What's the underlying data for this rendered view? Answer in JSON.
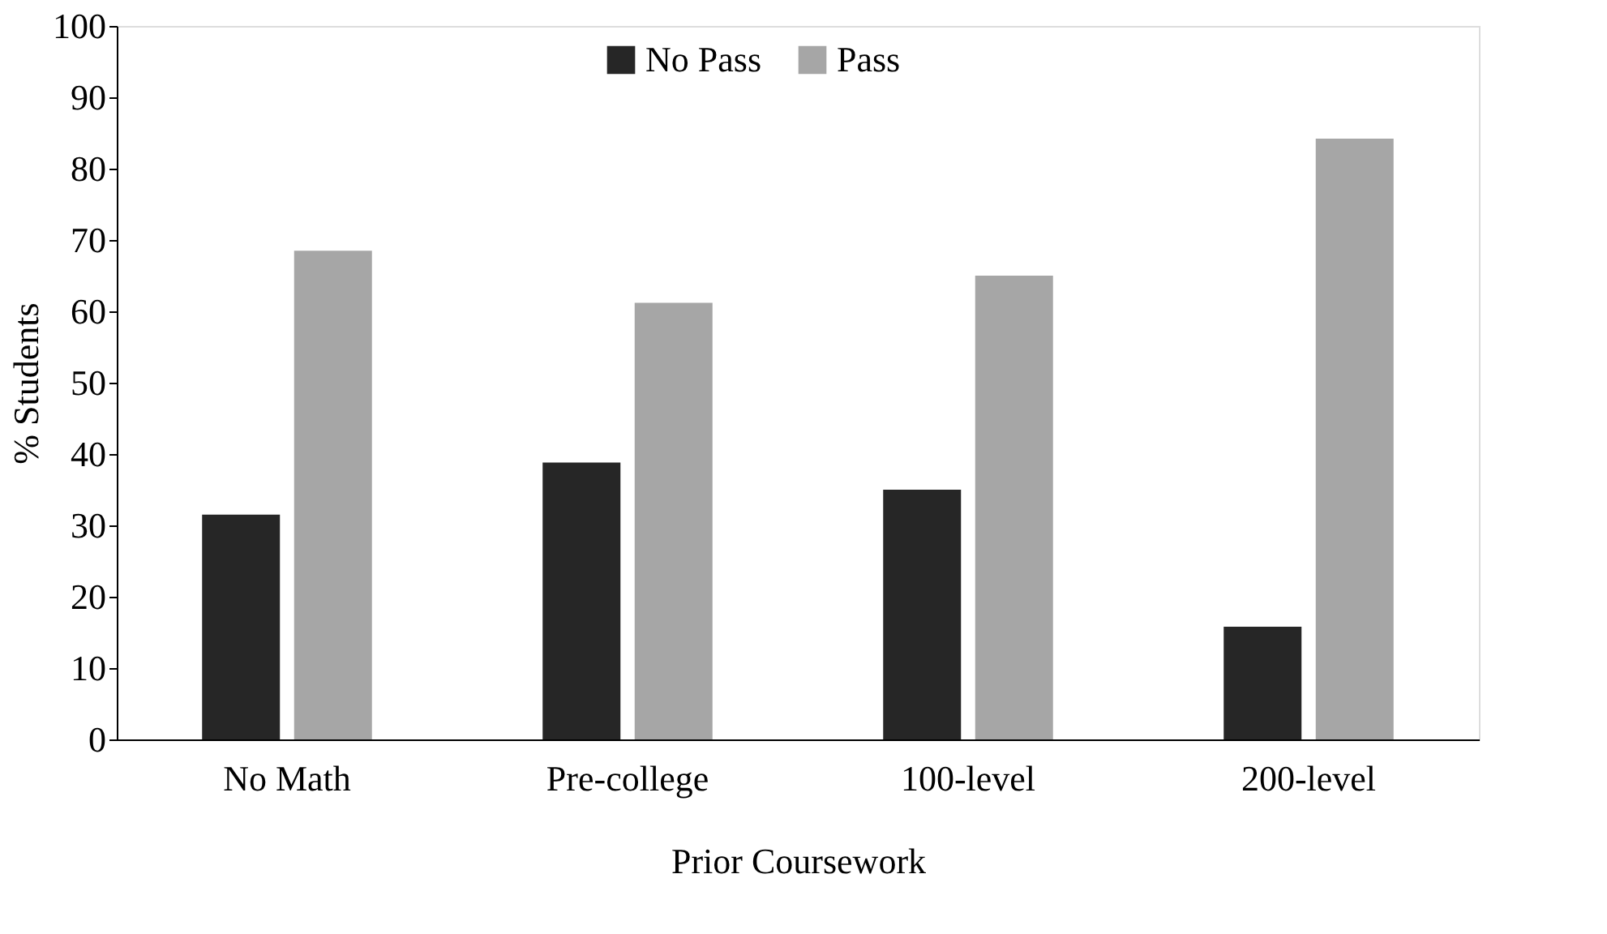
{
  "chart_data": {
    "type": "bar",
    "xlabel": "Prior Coursework",
    "ylabel": "% Students",
    "categories": [
      "No Math",
      "Pre-college",
      "100-level",
      "200-level"
    ],
    "series": [
      {
        "name": "No Pass",
        "color": "#262626",
        "values": [
          31.5,
          38.8,
          35.0,
          15.8
        ]
      },
      {
        "name": "Pass",
        "color": "#a6a6a6",
        "values": [
          68.5,
          61.2,
          65.0,
          84.2
        ]
      }
    ],
    "ylim": [
      0,
      100
    ],
    "yticks": [
      0,
      10,
      20,
      30,
      40,
      50,
      60,
      70,
      80,
      90,
      100
    ],
    "grid": false,
    "legend": "top"
  }
}
